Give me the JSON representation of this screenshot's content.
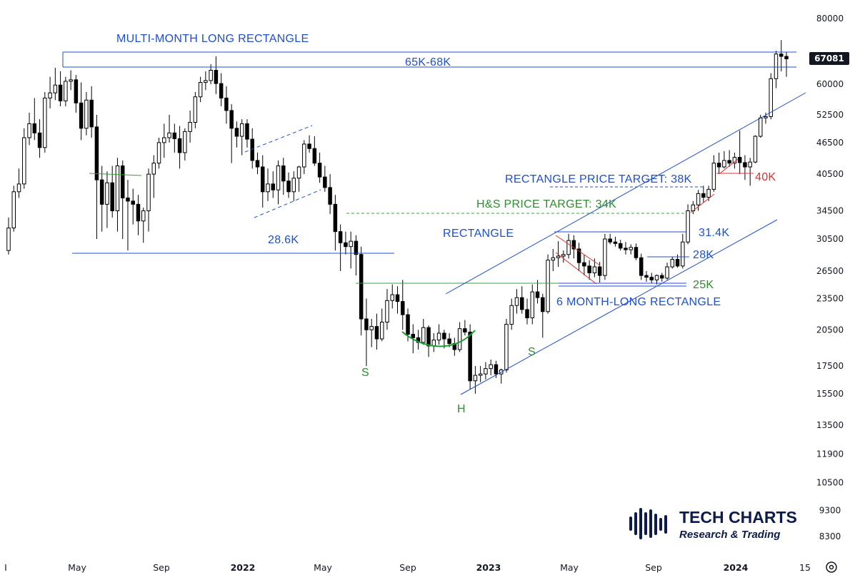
{
  "chart_data": {
    "type": "candlestick",
    "scale": "log",
    "y_ticks": [
      80000,
      70000,
      60000,
      52500,
      46500,
      40500,
      34500,
      30500,
      26500,
      23500,
      20500,
      17500,
      15500,
      13500,
      11900,
      10500,
      9300,
      8300
    ],
    "y_tick_labels": [
      "80000",
      "",
      "60000",
      "52500",
      "46500",
      "40500",
      "34500",
      "30500",
      "26500",
      "23500",
      "20500",
      "17500",
      "15500",
      "13500",
      "11900",
      "10500",
      "9300",
      "8300"
    ],
    "ylim": [
      7600,
      92000
    ],
    "x_labels": [
      "I",
      "May",
      "Sep",
      "2022",
      "May",
      "Sep",
      "2023",
      "May",
      "Sep",
      "2024",
      "15"
    ],
    "x_bold": [
      false,
      false,
      false,
      true,
      false,
      false,
      true,
      false,
      false,
      true,
      false
    ],
    "last_price": "67081",
    "candles": [
      [
        29000,
        33500,
        28500,
        32000
      ],
      [
        32000,
        38500,
        31500,
        37500
      ],
      [
        37500,
        41500,
        36500,
        38800
      ],
      [
        38800,
        49500,
        38000,
        47500
      ],
      [
        47500,
        53000,
        46000,
        50500
      ],
      [
        50500,
        56500,
        47000,
        48500
      ],
      [
        48500,
        51500,
        43500,
        45500
      ],
      [
        45500,
        58000,
        44500,
        56500
      ],
      [
        56500,
        62000,
        54000,
        57800
      ],
      [
        57800,
        64500,
        56000,
        59800
      ],
      [
        59800,
        63500,
        54500,
        55800
      ],
      [
        55800,
        62000,
        54500,
        60800
      ],
      [
        60800,
        63800,
        58500,
        61200
      ],
      [
        61200,
        62500,
        53000,
        55300
      ],
      [
        55300,
        60500,
        47000,
        49500
      ],
      [
        49500,
        58000,
        48000,
        56000
      ],
      [
        56000,
        59500,
        47500,
        49800
      ],
      [
        49800,
        52500,
        30500,
        39500
      ],
      [
        39500,
        42000,
        31500,
        35500
      ],
      [
        35500,
        41000,
        32000,
        39000
      ],
      [
        39000,
        42000,
        33500,
        34500
      ],
      [
        34500,
        43500,
        31500,
        42000
      ],
      [
        42000,
        43000,
        30500,
        36500
      ],
      [
        36500,
        39500,
        29000,
        36000
      ],
      [
        36000,
        38000,
        32500,
        35500
      ],
      [
        35500,
        37000,
        31000,
        33000
      ],
      [
        33000,
        35000,
        30000,
        34500
      ],
      [
        34500,
        41500,
        31500,
        40500
      ],
      [
        40500,
        44000,
        36500,
        42500
      ],
      [
        42500,
        47500,
        41500,
        46500
      ],
      [
        46500,
        50500,
        43500,
        47500
      ],
      [
        47500,
        52500,
        46500,
        48500
      ],
      [
        48500,
        50500,
        44500,
        47300
      ],
      [
        47300,
        50000,
        41500,
        44500
      ],
      [
        44500,
        49500,
        43000,
        48800
      ],
      [
        48800,
        53500,
        46500,
        50800
      ],
      [
        50800,
        58000,
        49500,
        56800
      ],
      [
        56800,
        62000,
        55500,
        60500
      ],
      [
        60500,
        63500,
        58500,
        61000
      ],
      [
        61000,
        65500,
        60000,
        63800
      ],
      [
        63800,
        67800,
        57500,
        60200
      ],
      [
        60200,
        63000,
        54500,
        56500
      ],
      [
        56500,
        59500,
        50500,
        53500
      ],
      [
        53500,
        55000,
        42500,
        49500
      ],
      [
        49500,
        51000,
        45500,
        47800
      ],
      [
        47800,
        51500,
        44000,
        50500
      ],
      [
        50500,
        51500,
        45500,
        47200
      ],
      [
        47200,
        49500,
        41500,
        43000
      ],
      [
        43000,
        44500,
        40500,
        41800
      ],
      [
        41800,
        44000,
        35000,
        37500
      ],
      [
        37500,
        41500,
        36000,
        38800
      ],
      [
        38800,
        41000,
        36500,
        37800
      ],
      [
        37800,
        43000,
        35500,
        42000
      ],
      [
        42000,
        43500,
        37000,
        39300
      ],
      [
        39300,
        40800,
        36500,
        37500
      ],
      [
        37500,
        41000,
        36000,
        39800
      ],
      [
        39800,
        42000,
        37500,
        41800
      ],
      [
        41800,
        47000,
        40500,
        46200
      ],
      [
        46200,
        48000,
        44500,
        45300
      ],
      [
        45300,
        47800,
        42000,
        42500
      ],
      [
        42500,
        44500,
        39000,
        40000
      ],
      [
        40000,
        42000,
        37500,
        38200
      ],
      [
        38200,
        40500,
        34000,
        35500
      ],
      [
        35500,
        37000,
        29000,
        31500
      ],
      [
        31500,
        32500,
        26500,
        30000
      ],
      [
        30000,
        31500,
        28500,
        29500
      ],
      [
        29500,
        31500,
        26800,
        30200
      ],
      [
        30200,
        31000,
        26000,
        28500
      ],
      [
        28500,
        29500,
        20000,
        21500
      ],
      [
        21500,
        23500,
        17500,
        20500
      ],
      [
        20500,
        21500,
        19000,
        20800
      ],
      [
        20800,
        22000,
        18800,
        19700
      ],
      [
        19700,
        22500,
        19500,
        21200
      ],
      [
        21200,
        24500,
        20500,
        23300
      ],
      [
        23300,
        25000,
        22500,
        23900
      ],
      [
        23900,
        24800,
        22000,
        23200
      ],
      [
        23200,
        25500,
        20500,
        21900
      ],
      [
        21900,
        22500,
        19500,
        20100
      ],
      [
        20100,
        21000,
        18500,
        19800
      ],
      [
        19800,
        20500,
        18800,
        19400
      ],
      [
        19400,
        21500,
        19200,
        20700
      ],
      [
        20700,
        20900,
        18200,
        19100
      ],
      [
        19100,
        20200,
        18600,
        19600
      ],
      [
        19600,
        21000,
        19200,
        20200
      ],
      [
        20200,
        20500,
        18900,
        19700
      ],
      [
        19700,
        20200,
        19000,
        19300
      ],
      [
        19300,
        19800,
        18300,
        18800
      ],
      [
        18800,
        21200,
        18600,
        20600
      ],
      [
        20600,
        21400,
        20000,
        20300
      ],
      [
        20300,
        21000,
        15800,
        16400
      ],
      [
        16400,
        17500,
        15500,
        16800
      ],
      [
        16800,
        17500,
        16300,
        16900
      ],
      [
        16900,
        17800,
        16500,
        17300
      ],
      [
        17300,
        18000,
        16800,
        17600
      ],
      [
        17600,
        17900,
        16600,
        16900
      ],
      [
        16900,
        17300,
        16200,
        17200
      ],
      [
        17200,
        21500,
        17000,
        21000
      ],
      [
        21000,
        23500,
        20500,
        22800
      ],
      [
        22800,
        24500,
        22000,
        23600
      ],
      [
        23600,
        24800,
        22000,
        22400
      ],
      [
        22400,
        23500,
        21000,
        21600
      ],
      [
        21600,
        25000,
        21000,
        24200
      ],
      [
        24200,
        25500,
        23000,
        23600
      ],
      [
        23600,
        24000,
        19800,
        22200
      ],
      [
        22200,
        28500,
        22000,
        27800
      ],
      [
        27800,
        29200,
        26500,
        28100
      ],
      [
        28100,
        30200,
        27000,
        28300
      ],
      [
        28300,
        29000,
        27500,
        28500
      ],
      [
        28500,
        31200,
        28000,
        30300
      ],
      [
        30300,
        31000,
        28000,
        29200
      ],
      [
        29200,
        30000,
        26500,
        27500
      ],
      [
        27500,
        28500,
        26000,
        27100
      ],
      [
        27100,
        27800,
        25500,
        26300
      ],
      [
        26300,
        28000,
        25800,
        27000
      ],
      [
        27000,
        27600,
        25200,
        26000
      ],
      [
        26000,
        31200,
        25500,
        30500
      ],
      [
        30500,
        31200,
        29800,
        30100
      ],
      [
        30100,
        30800,
        29500,
        29900
      ],
      [
        29900,
        30400,
        29000,
        29300
      ],
      [
        29300,
        30100,
        28500,
        29100
      ],
      [
        29100,
        29800,
        28500,
        29400
      ],
      [
        29400,
        29900,
        27800,
        28100
      ],
      [
        28100,
        28600,
        25500,
        26000
      ],
      [
        26000,
        26500,
        25300,
        25800
      ],
      [
        25800,
        26300,
        25100,
        25500
      ],
      [
        25500,
        26100,
        25000,
        26000
      ],
      [
        26000,
        26300,
        25300,
        25700
      ],
      [
        25700,
        27500,
        25500,
        27000
      ],
      [
        27000,
        28200,
        26800,
        27900
      ],
      [
        27900,
        28500,
        26900,
        27100
      ],
      [
        27100,
        31200,
        26800,
        30100
      ],
      [
        30100,
        35500,
        29800,
        34500
      ],
      [
        34500,
        36000,
        34000,
        35400
      ],
      [
        35400,
        37800,
        34500,
        37200
      ],
      [
        37200,
        38500,
        35800,
        36600
      ],
      [
        36600,
        38500,
        36000,
        37900
      ],
      [
        37900,
        44000,
        37500,
        42500
      ],
      [
        42500,
        44500,
        40500,
        41800
      ],
      [
        41800,
        44800,
        41500,
        43000
      ],
      [
        43000,
        45000,
        41800,
        42500
      ],
      [
        42500,
        44500,
        41500,
        43600
      ],
      [
        43600,
        49000,
        40500,
        42600
      ],
      [
        42600,
        44000,
        39500,
        41800
      ],
      [
        41800,
        43500,
        38500,
        42700
      ],
      [
        42700,
        48000,
        42500,
        47800
      ],
      [
        47800,
        52500,
        47500,
        51800
      ],
      [
        51800,
        53000,
        50500,
        52100
      ],
      [
        52100,
        63000,
        51500,
        61500
      ],
      [
        61500,
        69500,
        59000,
        68500
      ],
      [
        68500,
        72800,
        63500,
        67800
      ],
      [
        67800,
        69000,
        62000,
        67081
      ]
    ]
  },
  "annotations": {
    "multi_month_rectangle": "MULTI-MONTH LONG RECTANGLE",
    "range_65_68": "65K-68K",
    "level_28_6": "28.6K",
    "rectangle_target": "RECTANGLE PRICE TARGET: 38K",
    "hs_target": "H&S PRICE TARGET: 34K",
    "rectangle": "RECTANGLE",
    "level_31_4": "31.4K",
    "level_28": "28K",
    "level_25": "25K",
    "six_month_rectangle": "6 MONTH-LONG RECTANGLE",
    "level_40": "40K",
    "shoulder_left": "S",
    "head": "H",
    "shoulder_right": "S"
  },
  "colors": {
    "up": "#ffffff",
    "down": "#000000",
    "blue": "#1e4fd0",
    "green": "#2e8b2e",
    "red": "#e03030",
    "hs_curve": "#18a030"
  },
  "logo": {
    "title": "TECH CHARTS",
    "subtitle": "Research & Trading"
  },
  "settings_icon": "gear-icon"
}
